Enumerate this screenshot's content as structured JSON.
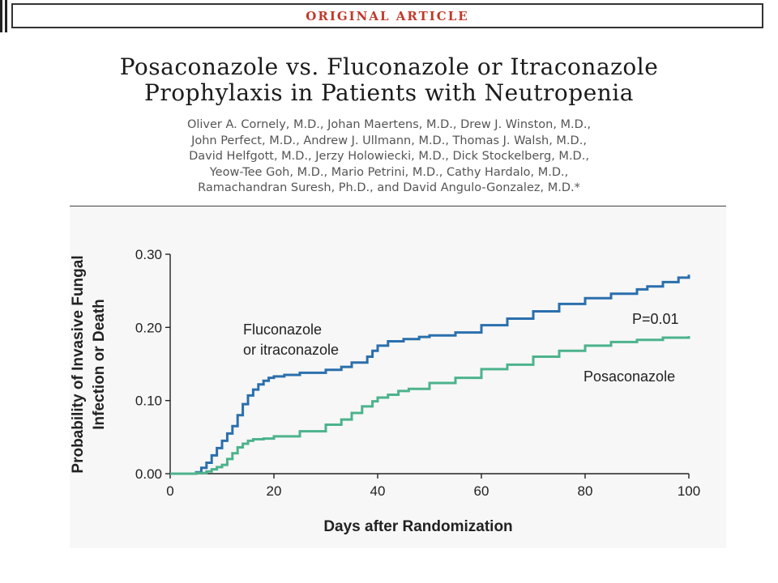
{
  "header": {
    "banner_label": "ORIGINAL ARTICLE"
  },
  "article": {
    "title_line1": "Posaconazole vs. Fluconazole or Itraconazole",
    "title_line2": "Prophylaxis in Patients with Neutropenia",
    "authors": [
      "Oliver A. Cornely, M.D., Johan Maertens, M.D., Drew J. Winston, M.D.,",
      "John Perfect, M.D., Andrew J. Ullmann, M.D., Thomas J. Walsh, M.D.,",
      "David Helfgott, M.D., Jerzy Holowiecki, M.D., Dick Stockelberg, M.D.,",
      "Yeow-Tee Goh, M.D., Mario Petrini, M.D., Cathy Hardalo, M.D.,",
      "Ramachandran Suresh, Ph.D., and David Angulo-Gonzalez, M.D.*"
    ]
  },
  "chart_data": {
    "type": "line",
    "step": true,
    "xlabel": "Days after Randomization",
    "ylabel_line1": "Probability of Invasive Fungal",
    "ylabel_line2": "Infection or Death",
    "xlim": [
      0,
      100
    ],
    "ylim": [
      0,
      0.3
    ],
    "xticks": [
      0,
      20,
      40,
      60,
      80,
      100
    ],
    "yticks": [
      0,
      0.1,
      0.2,
      0.3
    ],
    "ytick_labels": [
      "0.00",
      "0.10",
      "0.20",
      "0.30"
    ],
    "series": [
      {
        "name": "Fluconazole or itraconazole",
        "label_line1": "Fluconazole",
        "label_line2": "or itraconazole",
        "color": "#2a6fad",
        "x": [
          0,
          5,
          6,
          7,
          8,
          9,
          10,
          11,
          12,
          13,
          14,
          15,
          16,
          17,
          18,
          19,
          20,
          22,
          25,
          30,
          33,
          35,
          38,
          39,
          40,
          42,
          45,
          48,
          50,
          55,
          60,
          65,
          70,
          75,
          80,
          85,
          90,
          92,
          95,
          98,
          100
        ],
        "y": [
          0,
          0.002,
          0.008,
          0.015,
          0.025,
          0.035,
          0.045,
          0.055,
          0.065,
          0.08,
          0.095,
          0.107,
          0.115,
          0.122,
          0.127,
          0.131,
          0.133,
          0.135,
          0.138,
          0.142,
          0.146,
          0.152,
          0.16,
          0.168,
          0.175,
          0.181,
          0.184,
          0.187,
          0.189,
          0.193,
          0.203,
          0.212,
          0.222,
          0.232,
          0.24,
          0.246,
          0.252,
          0.256,
          0.262,
          0.268,
          0.272
        ]
      },
      {
        "name": "Posaconazole",
        "label_line1": "Posaconazole",
        "color": "#4cb38c",
        "x": [
          0,
          5,
          7,
          8,
          9,
          10,
          11,
          12,
          13,
          14,
          15,
          16,
          18,
          20,
          25,
          30,
          33,
          35,
          37,
          39,
          40,
          42,
          44,
          46,
          50,
          55,
          60,
          65,
          70,
          75,
          80,
          85,
          90,
          95,
          100
        ],
        "y": [
          0,
          0.001,
          0.003,
          0.006,
          0.009,
          0.012,
          0.02,
          0.028,
          0.036,
          0.041,
          0.045,
          0.047,
          0.048,
          0.051,
          0.058,
          0.067,
          0.074,
          0.083,
          0.092,
          0.099,
          0.104,
          0.108,
          0.113,
          0.116,
          0.124,
          0.131,
          0.143,
          0.149,
          0.16,
          0.168,
          0.175,
          0.18,
          0.183,
          0.186,
          0.188
        ]
      }
    ],
    "annotations": [
      {
        "text": "P=0.01"
      }
    ],
    "grid": false,
    "legend": "none"
  }
}
